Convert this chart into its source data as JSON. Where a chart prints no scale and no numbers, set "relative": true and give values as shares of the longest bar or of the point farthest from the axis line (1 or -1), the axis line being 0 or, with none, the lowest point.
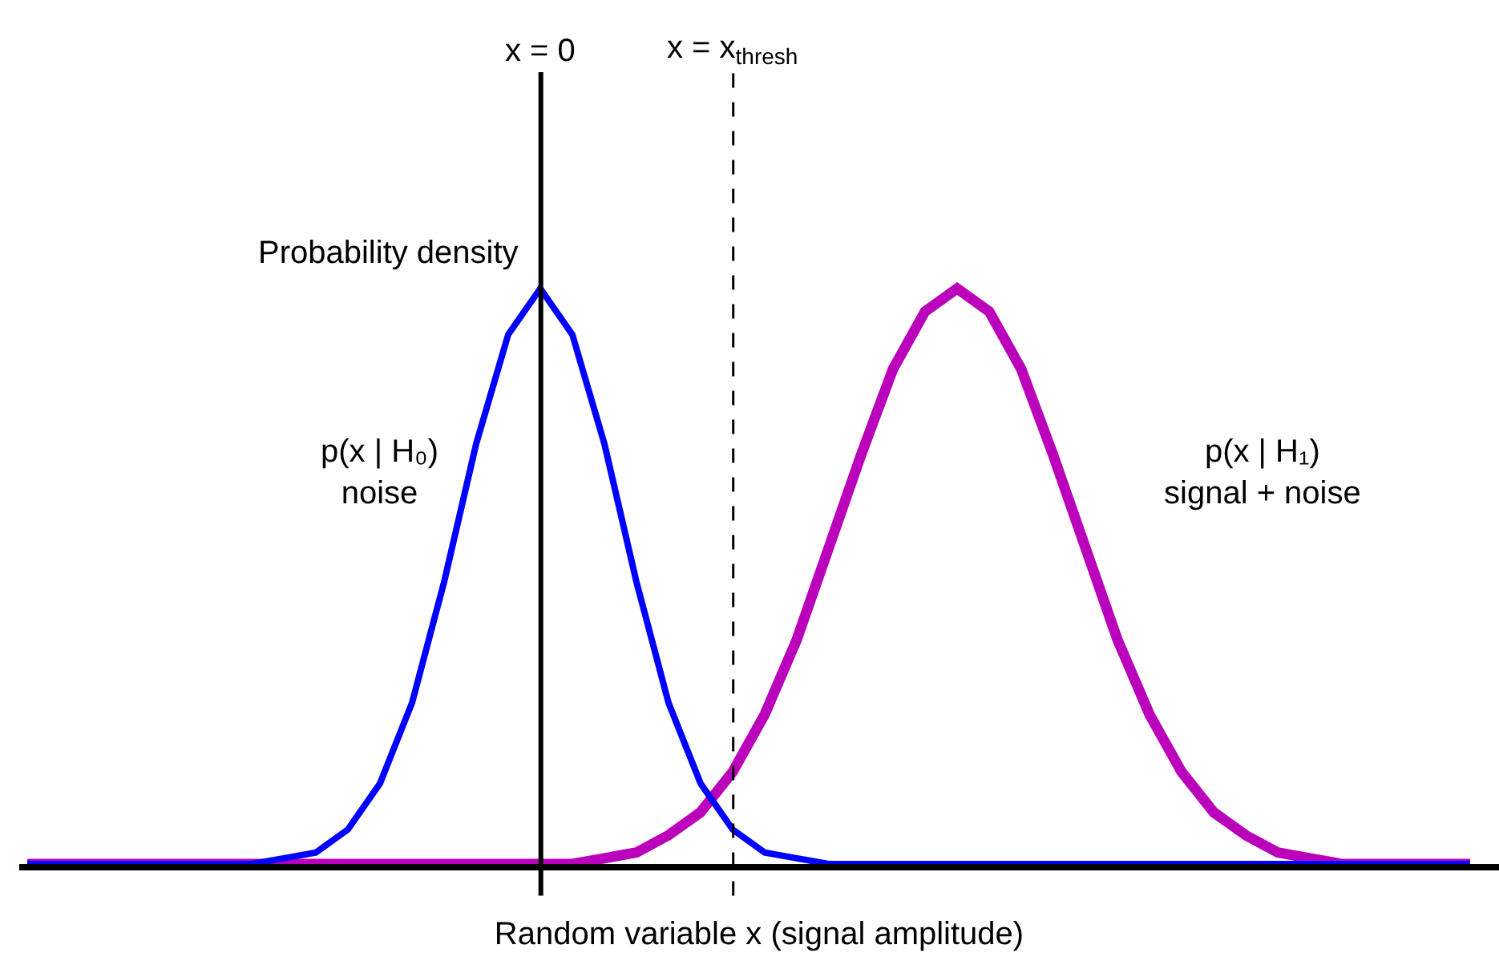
{
  "chart_data": {
    "type": "line",
    "relative": true,
    "ylabel": "Probability density",
    "xlabel": "Random variable x (signal amplitude)",
    "categories": [
      null,
      null,
      null,
      null,
      null,
      null,
      null,
      null,
      null,
      null,
      null,
      null,
      null,
      null,
      null,
      null,
      null,
      null,
      null,
      null,
      null,
      null,
      null,
      null,
      null,
      null,
      null,
      null,
      null,
      null,
      null,
      null,
      null,
      null,
      null,
      null,
      null,
      null,
      null,
      null,
      null,
      null,
      null,
      null,
      null,
      null
    ],
    "series": [
      {
        "name": "p(x | H₀)\nnoise",
        "color": "#0000ff",
        "values": [
          0,
          0,
          0,
          0,
          0,
          0,
          0,
          0,
          0.01,
          0.02,
          0.06,
          0.14,
          0.28,
          0.49,
          0.73,
          0.92,
          1,
          0.92,
          0.73,
          0.49,
          0.28,
          0.14,
          0.06,
          0.02,
          0.01,
          0,
          0,
          0,
          0,
          0,
          0,
          0,
          0,
          0,
          0,
          0,
          0,
          0,
          0,
          0,
          0,
          0,
          0,
          0,
          0,
          0
        ]
      },
      {
        "name": "p(x | H₁)\nsignal + noise",
        "color": "#bb00bb",
        "values": [
          0,
          0,
          0,
          0,
          0,
          0,
          0,
          0,
          0,
          0,
          0,
          0,
          0,
          0,
          0,
          0,
          0,
          0,
          0.01,
          0.02,
          0.05,
          0.09,
          0.16,
          0.26,
          0.39,
          0.55,
          0.71,
          0.86,
          0.96,
          1,
          0.96,
          0.86,
          0.71,
          0.55,
          0.39,
          0.26,
          0.16,
          0.09,
          0.05,
          0.02,
          0.01,
          0,
          0,
          0,
          0,
          0
        ]
      }
    ],
    "annotations": [
      "x = 0",
      "x = x$_{thresh}$"
    ]
  }
}
